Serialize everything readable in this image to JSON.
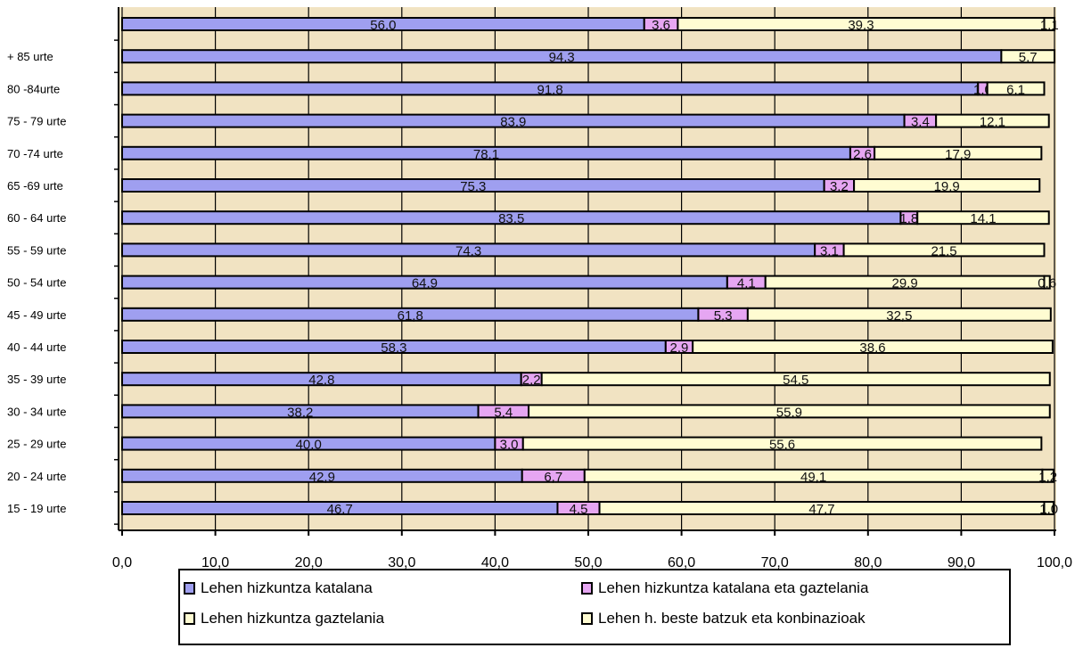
{
  "chart_data": {
    "type": "bar",
    "stacked": true,
    "orientation": "horizontal",
    "categories": [
      "",
      "+ 85 urte",
      "80 -84urte",
      "75 - 79 urte",
      "70 -74 urte",
      "65 -69 urte",
      "60 - 64 urte",
      "55 - 59 urte",
      "50 - 54 urte",
      "45 - 49 urte",
      "40 - 44 urte",
      "35 - 39 urte",
      "30 - 34 urte",
      "25 - 29 urte",
      "20 - 24 urte",
      "15 - 19 urte"
    ],
    "series": [
      {
        "name": "Lehen hizkuntza katalana",
        "color": "#9f9ff0",
        "values": [
          56.0,
          94.3,
          91.8,
          83.9,
          78.1,
          75.3,
          83.5,
          74.3,
          64.9,
          61.8,
          58.3,
          42.8,
          38.2,
          40.0,
          42.9,
          46.7
        ],
        "labels": [
          "56,0",
          "94,3",
          "91,8",
          "83,9",
          "78,1",
          "75,3",
          "83,5",
          "74,3",
          "64,9",
          "61,8",
          "58,3",
          "42,8",
          "38,2",
          "40,0",
          "42,9",
          "46,7"
        ]
      },
      {
        "name": "Lehen hizkuntza katalana eta gaztelania",
        "color": "#e6a6f2",
        "values": [
          3.6,
          0,
          1.0,
          3.4,
          2.6,
          3.2,
          1.8,
          3.1,
          4.1,
          5.3,
          2.9,
          2.2,
          5.4,
          3.0,
          6.7,
          4.5
        ],
        "labels": [
          "3,6",
          "",
          "1,0",
          "3,4",
          "2,6",
          "3,2",
          "1,8",
          "3,1",
          "4,1",
          "5,3",
          "2,9",
          "2,2",
          "5,4",
          "3,0",
          "6,7",
          "4,5"
        ]
      },
      {
        "name": "Lehen hizkuntza gaztelania",
        "color": "#fffcd2",
        "values": [
          39.3,
          5.7,
          6.1,
          12.1,
          17.9,
          19.9,
          14.1,
          21.5,
          29.9,
          32.5,
          38.6,
          54.5,
          55.9,
          55.6,
          49.1,
          47.7
        ],
        "labels": [
          "39,3",
          "5,7",
          "6,1",
          "12,1",
          "17,9",
          "19,9",
          "14,1",
          "21,5",
          "29,9",
          "32,5",
          "38,6",
          "54,5",
          "55,9",
          "55,6",
          "49,1",
          "47,7"
        ]
      },
      {
        "name": "Lehen h. beste batzuk eta konbinazioak",
        "color": "#fffcd2",
        "values": [
          1.1,
          0,
          0,
          0,
          0,
          0,
          0,
          0,
          0.6,
          0,
          0,
          0,
          0,
          0,
          1.2,
          1.0
        ],
        "labels": [
          "1,1",
          "",
          "",
          "",
          "",
          "",
          "",
          "",
          "0,6",
          "",
          "",
          "",
          "",
          "",
          "1,2",
          "1,0"
        ]
      }
    ],
    "xlim": [
      0,
      100
    ],
    "xticks": [
      "0,0",
      "10,0",
      "20,0",
      "30,0",
      "40,0",
      "50,0",
      "60,0",
      "70,0",
      "80,0",
      "90,0",
      "100,0"
    ],
    "title": "",
    "xlabel": "",
    "ylabel": "",
    "grid": true,
    "legend_position": "bottom",
    "background": "#f1e3c2"
  }
}
